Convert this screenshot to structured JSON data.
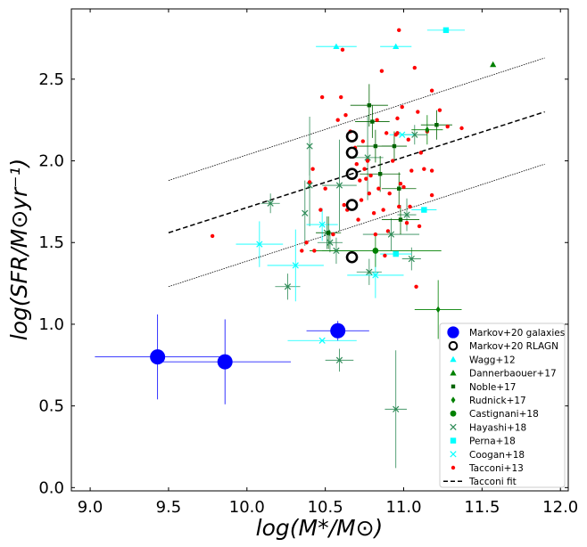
{
  "chart_data": {
    "type": "scatter",
    "xlabel": "log(M*/M⊙)",
    "ylabel": "log(SFR/M⊙yr⁻¹)",
    "xlim": [
      8.88,
      12.05
    ],
    "ylim": [
      -0.02,
      2.93
    ],
    "xticks": [
      9.0,
      9.5,
      10.0,
      10.5,
      11.0,
      11.5,
      12.0
    ],
    "yticks": [
      0.0,
      0.5,
      1.0,
      1.5,
      2.0,
      2.5
    ],
    "xtick_labels": [
      "9.0",
      "9.5",
      "10.0",
      "10.5",
      "11.0",
      "11.5",
      "12.0"
    ],
    "ytick_labels": [
      "0.0",
      "0.5",
      "1.0",
      "1.5",
      "2.0",
      "2.5"
    ],
    "legend_position": "lower-right",
    "fit": {
      "name": "Tacconi fit",
      "x": [
        9.5,
        11.9
      ],
      "y": [
        1.56,
        2.3
      ],
      "scatter_band": [
        {
          "x": [
            9.5,
            11.9
          ],
          "y": [
            1.88,
            2.63
          ]
        },
        {
          "x": [
            9.5,
            11.9
          ],
          "y": [
            1.23,
            1.98
          ]
        }
      ]
    },
    "series": [
      {
        "name": "Markov+20 galaxies",
        "marker": "circle",
        "color": "#0000ff",
        "points": [
          {
            "x": 9.43,
            "y": 0.8,
            "xerr": 0.4,
            "yerr": 0.26
          },
          {
            "x": 9.86,
            "y": 0.77,
            "xerr": 0.42,
            "yerr": 0.26
          },
          {
            "x": 10.58,
            "y": 0.96,
            "xerr": 0.2,
            "yerr": 0.06
          }
        ]
      },
      {
        "name": "Markov+20 RLAGN",
        "marker": "ring",
        "color": "#000000",
        "points": [
          {
            "x": 10.67,
            "y": 2.15
          },
          {
            "x": 10.67,
            "y": 2.05
          },
          {
            "x": 10.67,
            "y": 1.92
          },
          {
            "x": 10.67,
            "y": 1.73
          },
          {
            "x": 10.67,
            "y": 1.41
          }
        ]
      },
      {
        "name": "Wagg+12",
        "marker": "triangle-up",
        "color": "#00ffff",
        "points": [
          {
            "x": 10.57,
            "y": 2.7,
            "xerr": 0.13
          },
          {
            "x": 10.95,
            "y": 2.7,
            "xerr": 0.1
          }
        ]
      },
      {
        "name": "Dannerbaouer+17",
        "marker": "triangle-up",
        "color": "#008000",
        "points": [
          {
            "x": 11.57,
            "y": 2.59
          }
        ]
      },
      {
        "name": "Noble+17",
        "marker": "square-small",
        "color": "#006400",
        "points": [
          {
            "x": 10.78,
            "y": 2.34,
            "xerr": 0.12,
            "yerr": 0.13
          },
          {
            "x": 10.8,
            "y": 2.24,
            "xerr": 0.11,
            "yerr": 0.1
          },
          {
            "x": 10.82,
            "y": 2.09,
            "xerr": 0.12,
            "yerr": 0.1
          },
          {
            "x": 10.85,
            "y": 1.92,
            "xerr": 0.13,
            "yerr": 0.11
          },
          {
            "x": 10.94,
            "y": 2.09,
            "xerr": 0.08,
            "yerr": 0.09
          },
          {
            "x": 10.97,
            "y": 1.83,
            "xerr": 0.11,
            "yerr": 0.1
          },
          {
            "x": 10.98,
            "y": 1.64,
            "xerr": 0.12,
            "yerr": 0.09
          },
          {
            "x": 11.21,
            "y": 2.22,
            "xerr": 0.1,
            "yerr": 0.09
          },
          {
            "x": 10.52,
            "y": 1.56,
            "xerr": 0.08,
            "yerr": 0.1
          }
        ]
      },
      {
        "name": "Rudnick+17",
        "marker": "diamond",
        "color": "#008000",
        "points": [
          {
            "x": 11.15,
            "y": 2.19,
            "xerr": 0.1,
            "yerr": 0.09
          },
          {
            "x": 11.22,
            "y": 1.09,
            "xerr": 0.15,
            "yerr": 0.18
          }
        ]
      },
      {
        "name": "Castignani+18",
        "marker": "circle-small",
        "color": "#008000",
        "points": [
          {
            "x": 10.82,
            "y": 1.45,
            "xerr": 0.42,
            "yerr": 0.1
          }
        ]
      },
      {
        "name": "Hayashi+18",
        "marker": "x",
        "color": "#2e8b57",
        "points": [
          {
            "x": 10.4,
            "y": 2.09,
            "yerr": 0.18
          },
          {
            "x": 10.4,
            "y": 1.85,
            "yerr": 0.25
          },
          {
            "x": 10.37,
            "y": 1.68,
            "yerr": 0.2
          },
          {
            "x": 10.51,
            "y": 1.56,
            "xerr": 0.07,
            "yerr": 0.1
          },
          {
            "x": 10.53,
            "y": 1.5,
            "xerr": 0.08,
            "yerr": 0.06
          },
          {
            "x": 10.57,
            "y": 1.45,
            "xerr": 0.09,
            "yerr": 0.08
          },
          {
            "x": 10.59,
            "y": 1.85,
            "xerr": 0.11,
            "yerr": 0.28
          },
          {
            "x": 10.15,
            "y": 1.74,
            "xerr": 0.06,
            "yerr": 0.06
          },
          {
            "x": 10.26,
            "y": 1.23,
            "xerr": 0.08,
            "yerr": 0.08
          },
          {
            "x": 10.59,
            "y": 0.78,
            "xerr": 0.09,
            "yerr": 0.07
          },
          {
            "x": 10.78,
            "y": 1.32,
            "xerr": 0.08,
            "yerr": 0.08
          },
          {
            "x": 10.95,
            "y": 0.48,
            "xerr": 0.07,
            "yerr": 0.36
          },
          {
            "x": 10.92,
            "y": 1.55,
            "xerr": 0.18,
            "yerr": 0.1
          },
          {
            "x": 11.02,
            "y": 1.67,
            "xerr": 0.06,
            "yerr": 0.1
          },
          {
            "x": 11.05,
            "y": 1.4,
            "xerr": 0.06,
            "yerr": 0.07
          },
          {
            "x": 11.07,
            "y": 2.16,
            "xerr": 0.08,
            "yerr": 0.06
          },
          {
            "x": 10.77,
            "y": 2.02,
            "xerr": 0.1,
            "yerr": 0.26
          }
        ]
      },
      {
        "name": "Perna+18",
        "marker": "square",
        "color": "#00ffff",
        "points": [
          {
            "x": 11.27,
            "y": 2.8,
            "xerr": 0.12
          },
          {
            "x": 11.13,
            "y": 1.7,
            "xerr": 0.08
          },
          {
            "x": 10.95,
            "y": 1.43,
            "xerr": 0.1
          }
        ]
      },
      {
        "name": "Coogan+18",
        "marker": "x",
        "color": "#00ffff",
        "points": [
          {
            "x": 10.08,
            "y": 1.49,
            "xerr": 0.15,
            "yerr": 0.14
          },
          {
            "x": 10.31,
            "y": 1.36,
            "xerr": 0.18,
            "yerr": 0.22
          },
          {
            "x": 10.48,
            "y": 1.61,
            "xerr": 0.1,
            "yerr": 0.1
          },
          {
            "x": 10.48,
            "y": 0.9,
            "xerr": 0.22
          },
          {
            "x": 10.82,
            "y": 1.3,
            "xerr": 0.18,
            "yerr": 0.14
          },
          {
            "x": 10.99,
            "y": 2.16,
            "xerr": 0.08
          }
        ]
      },
      {
        "name": "Tacconi+13",
        "marker": "dot",
        "color": "#ff0000",
        "points": [
          {
            "x": 9.78,
            "y": 1.54
          },
          {
            "x": 10.35,
            "y": 1.45
          },
          {
            "x": 10.38,
            "y": 1.5
          },
          {
            "x": 10.4,
            "y": 1.87
          },
          {
            "x": 10.42,
            "y": 1.95
          },
          {
            "x": 10.43,
            "y": 1.45
          },
          {
            "x": 10.47,
            "y": 1.7
          },
          {
            "x": 10.48,
            "y": 2.39
          },
          {
            "x": 10.5,
            "y": 1.83
          },
          {
            "x": 10.55,
            "y": 1.55
          },
          {
            "x": 10.58,
            "y": 2.25
          },
          {
            "x": 10.6,
            "y": 2.39
          },
          {
            "x": 10.61,
            "y": 2.68
          },
          {
            "x": 10.62,
            "y": 1.73
          },
          {
            "x": 10.63,
            "y": 2.28
          },
          {
            "x": 10.64,
            "y": 1.7
          },
          {
            "x": 10.66,
            "y": 2.18
          },
          {
            "x": 10.69,
            "y": 2.08
          },
          {
            "x": 10.7,
            "y": 1.98
          },
          {
            "x": 10.71,
            "y": 1.64
          },
          {
            "x": 10.72,
            "y": 1.88
          },
          {
            "x": 10.73,
            "y": 1.76
          },
          {
            "x": 10.74,
            "y": 2.12
          },
          {
            "x": 10.75,
            "y": 1.95
          },
          {
            "x": 10.76,
            "y": 1.89
          },
          {
            "x": 10.77,
            "y": 2.0
          },
          {
            "x": 10.78,
            "y": 1.8
          },
          {
            "x": 10.79,
            "y": 1.91
          },
          {
            "x": 10.81,
            "y": 1.68
          },
          {
            "x": 10.82,
            "y": 1.55
          },
          {
            "x": 10.83,
            "y": 2.25
          },
          {
            "x": 10.84,
            "y": 1.83
          },
          {
            "x": 10.86,
            "y": 2.55
          },
          {
            "x": 10.87,
            "y": 1.7
          },
          {
            "x": 10.88,
            "y": 1.42
          },
          {
            "x": 10.89,
            "y": 2.17
          },
          {
            "x": 10.9,
            "y": 1.57
          },
          {
            "x": 10.91,
            "y": 1.8
          },
          {
            "x": 10.93,
            "y": 2.0
          },
          {
            "x": 10.95,
            "y": 2.16
          },
          {
            "x": 10.96,
            "y": 2.26
          },
          {
            "x": 10.97,
            "y": 1.72
          },
          {
            "x": 10.97,
            "y": 2.8
          },
          {
            "x": 10.98,
            "y": 1.86
          },
          {
            "x": 10.99,
            "y": 2.33
          },
          {
            "x": 11.0,
            "y": 1.84
          },
          {
            "x": 11.02,
            "y": 1.62
          },
          {
            "x": 11.03,
            "y": 2.13
          },
          {
            "x": 11.04,
            "y": 1.72
          },
          {
            "x": 11.05,
            "y": 1.94
          },
          {
            "x": 11.07,
            "y": 2.57
          },
          {
            "x": 11.08,
            "y": 1.23
          },
          {
            "x": 11.09,
            "y": 2.3
          },
          {
            "x": 11.1,
            "y": 1.6
          },
          {
            "x": 11.11,
            "y": 2.05
          },
          {
            "x": 11.13,
            "y": 1.95
          },
          {
            "x": 11.15,
            "y": 2.18
          },
          {
            "x": 11.18,
            "y": 2.43
          },
          {
            "x": 11.18,
            "y": 1.79
          },
          {
            "x": 11.18,
            "y": 1.94
          },
          {
            "x": 11.23,
            "y": 2.31
          },
          {
            "x": 11.28,
            "y": 2.21
          },
          {
            "x": 11.37,
            "y": 2.2
          },
          {
            "x": 10.96,
            "y": 2.17
          }
        ]
      }
    ]
  }
}
